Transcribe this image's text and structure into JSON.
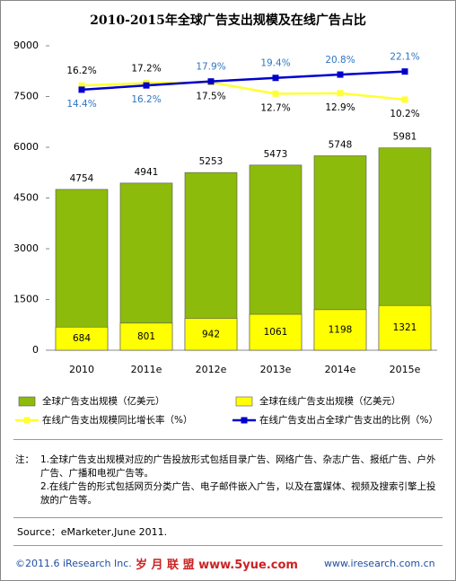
{
  "chart_data": {
    "type": "bar",
    "title": "2010-2015年全球广告支出规模及在线广告占比",
    "categories": [
      "2010",
      "2011e",
      "2012e",
      "2013e",
      "2014e",
      "2015e"
    ],
    "series": [
      {
        "name": "全球广告支出规模（亿美元）",
        "type": "bar",
        "color": "#8dbb0b",
        "values": [
          4754,
          4941,
          5253,
          5473,
          5748,
          5981
        ]
      },
      {
        "name": "全球在线广告支出规模（亿美元）",
        "type": "bar",
        "color": "#ffff00",
        "values": [
          684,
          801,
          942,
          1061,
          1198,
          1321
        ]
      },
      {
        "name": "在线广告支出规模同比增长率（%）",
        "type": "line",
        "axis": "y2",
        "color": "#ffff33",
        "values": [
          16.2,
          17.2,
          17.5,
          12.7,
          12.9,
          10.2
        ],
        "value_labels": [
          "16.2%",
          "17.2%",
          "17.5%",
          "12.7%",
          "12.9%",
          "10.2%"
        ]
      },
      {
        "name": "在线广告支出占全球广告支出的比例（%）",
        "type": "line",
        "axis": "y2",
        "color": "#0000cc",
        "values": [
          14.4,
          16.2,
          17.9,
          19.4,
          20.8,
          22.1
        ],
        "value_labels": [
          "14.4%",
          "16.2%",
          "17.9%",
          "19.4%",
          "20.8%",
          "22.1%"
        ]
      }
    ],
    "ylim": [
      0,
      9000
    ],
    "yticks": [
      0,
      1500,
      3000,
      4500,
      6000,
      7500,
      9000
    ],
    "y2lim": [
      -96,
      33
    ]
  },
  "notes": {
    "prefix": "注：",
    "items": [
      "1.全球广告支出规模对应的广告投放形式包括目录广告、网络广告、杂志广告、报纸广告、户外广告、广播和电视广告等。",
      "2.在线广告的形式包括网页分类广告、电子邮件嵌入广告，以及在富媒体、视频及搜索引擎上投放的广告等。"
    ]
  },
  "source": "Source：eMarketer,June 2011.",
  "footer": {
    "copyright": "©2011.6 iResearch Inc.",
    "watermark": "岁 月 联 盟 www.5yue.com",
    "url": "www.iresearch.com.cn"
  }
}
